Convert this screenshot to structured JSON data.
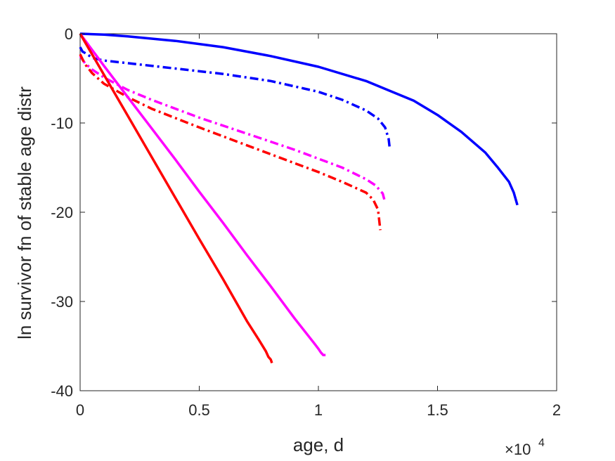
{
  "chart_data": {
    "type": "line",
    "title": "",
    "xlabel": "age, d",
    "ylabel": "ln survivor fn of stable age distr",
    "xlim": [
      0,
      20000
    ],
    "ylim": [
      -40,
      0
    ],
    "x_ticks": [
      0,
      5000,
      10000,
      15000,
      20000
    ],
    "x_tick_labels": [
      "0",
      "0.5",
      "1",
      "1.5",
      "2"
    ],
    "x_exponent": {
      "base": "×10",
      "power": "4"
    },
    "y_ticks": [
      0,
      -10,
      -20,
      -30,
      -40
    ],
    "y_tick_labels": [
      "0",
      "-10",
      "-20",
      "-30",
      "-40"
    ],
    "grid": false,
    "series": [
      {
        "color": "#0000ff",
        "style": "solid",
        "x": [
          0,
          1000,
          2000,
          4000,
          6000,
          8000,
          10000,
          12000,
          14000,
          15000,
          16000,
          17000,
          17500,
          18000,
          18200,
          18350
        ],
        "y": [
          0,
          -0.1,
          -0.3,
          -0.8,
          -1.5,
          -2.5,
          -3.7,
          -5.3,
          -7.5,
          -9.1,
          -11.0,
          -13.3,
          -14.9,
          -16.6,
          -17.8,
          -19.2
        ]
      },
      {
        "color": "#0000ff",
        "style": "dashdot",
        "x": [
          0,
          100,
          300,
          500,
          1000,
          2000,
          4000,
          6000,
          8000,
          10000,
          11000,
          12000,
          12500,
          12800,
          12950,
          13000
        ],
        "y": [
          -1.5,
          -2.0,
          -2.3,
          -2.7,
          -3.0,
          -3.3,
          -3.9,
          -4.5,
          -5.3,
          -6.5,
          -7.4,
          -8.6,
          -9.5,
          -10.5,
          -11.8,
          -13.0
        ]
      },
      {
        "color": "#ff00ff",
        "style": "dashdot",
        "x": [
          0,
          200,
          500,
          1000,
          2000,
          3000,
          5000,
          7000,
          9000,
          10000,
          11000,
          12000,
          12400,
          12700,
          12800
        ],
        "y": [
          -2.5,
          -3.3,
          -4.0,
          -4.9,
          -6.3,
          -7.4,
          -9.4,
          -11.2,
          -13.0,
          -14.0,
          -15.0,
          -16.3,
          -17.0,
          -17.9,
          -18.9
        ]
      },
      {
        "color": "#ff0000",
        "style": "dashdot",
        "x": [
          0,
          200,
          500,
          1000,
          2000,
          3000,
          5000,
          7000,
          9000,
          10000,
          11000,
          12000,
          12300,
          12500,
          12600
        ],
        "y": [
          -2.3,
          -3.4,
          -4.4,
          -5.6,
          -7.1,
          -8.4,
          -10.5,
          -12.5,
          -14.5,
          -15.5,
          -16.6,
          -17.8,
          -18.6,
          -19.7,
          -22.0
        ]
      },
      {
        "color": "#ff00ff",
        "style": "solid",
        "x": [
          0,
          1000,
          2000,
          3000,
          4000,
          5000,
          6000,
          7000,
          8000,
          9000,
          9800,
          10000,
          10100,
          10200,
          10300
        ],
        "y": [
          0,
          -3.6,
          -7.1,
          -10.6,
          -14.1,
          -17.7,
          -21.2,
          -24.8,
          -28.3,
          -31.9,
          -34.6,
          -35.3,
          -35.7,
          -36.0,
          -36.0
        ]
      },
      {
        "color": "#ff0000",
        "style": "solid",
        "x": [
          0,
          1000,
          2000,
          3000,
          4000,
          5000,
          6000,
          7000,
          7500,
          7800,
          7900,
          8000,
          8050
        ],
        "y": [
          0,
          -4.6,
          -9.2,
          -13.8,
          -18.4,
          -23.0,
          -27.5,
          -32.2,
          -34.3,
          -35.6,
          -36.2,
          -36.5,
          -36.9
        ]
      }
    ]
  }
}
